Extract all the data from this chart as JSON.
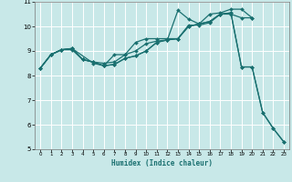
{
  "xlabel": "Humidex (Indice chaleur)",
  "bg_color": "#c8e8e8",
  "grid_color": "#ffffff",
  "line_color": "#1a7070",
  "xlim": [
    -0.5,
    23.5
  ],
  "ylim": [
    5,
    11
  ],
  "xticks": [
    0,
    1,
    2,
    3,
    4,
    5,
    6,
    7,
    8,
    9,
    10,
    11,
    12,
    13,
    14,
    15,
    16,
    17,
    18,
    19,
    20,
    21,
    22,
    23
  ],
  "yticks": [
    5,
    6,
    7,
    8,
    9,
    10,
    11
  ],
  "line1_x": [
    0,
    1,
    2,
    3,
    4,
    5,
    6,
    7,
    8,
    9,
    10,
    11,
    12,
    13,
    14,
    15,
    16,
    17,
    18,
    19,
    20
  ],
  "line1_y": [
    8.3,
    8.85,
    9.05,
    9.05,
    8.65,
    8.55,
    8.5,
    8.55,
    8.85,
    9.35,
    9.5,
    9.5,
    9.5,
    9.5,
    10.05,
    10.05,
    10.15,
    10.5,
    10.5,
    10.35,
    10.35
  ],
  "line2_x": [
    0,
    1,
    2,
    3,
    5,
    6,
    7,
    8,
    9,
    10,
    11,
    12,
    13,
    14,
    15,
    16,
    17,
    18,
    19,
    20
  ],
  "line2_y": [
    8.3,
    8.85,
    9.05,
    9.1,
    8.5,
    8.4,
    8.85,
    8.85,
    9.0,
    9.3,
    9.4,
    9.45,
    10.65,
    10.3,
    10.1,
    10.5,
    10.55,
    10.7,
    10.7,
    10.35
  ],
  "line3_x": [
    0,
    1,
    2,
    3,
    4,
    5,
    6,
    7,
    8,
    9,
    10,
    11,
    12,
    13,
    14,
    15,
    16,
    17,
    18,
    19,
    20,
    21,
    22,
    23
  ],
  "line3_y": [
    8.3,
    8.85,
    9.05,
    9.1,
    8.65,
    8.55,
    8.4,
    8.45,
    8.7,
    8.8,
    9.0,
    9.35,
    9.45,
    9.5,
    10.0,
    10.1,
    10.2,
    10.5,
    10.55,
    8.35,
    8.35,
    6.5,
    5.85,
    5.3
  ],
  "line4_x": [
    0,
    1,
    2,
    3,
    4,
    5,
    6,
    7,
    8,
    9,
    10,
    11,
    12,
    13,
    14,
    15,
    16,
    17,
    18,
    19,
    20,
    21,
    22,
    23
  ],
  "line4_y": [
    8.3,
    8.85,
    9.05,
    9.1,
    8.65,
    8.55,
    8.4,
    8.45,
    8.7,
    8.8,
    9.0,
    9.35,
    9.45,
    9.5,
    10.0,
    10.1,
    10.2,
    10.5,
    10.55,
    8.35,
    8.35,
    6.5,
    5.85,
    5.3
  ]
}
